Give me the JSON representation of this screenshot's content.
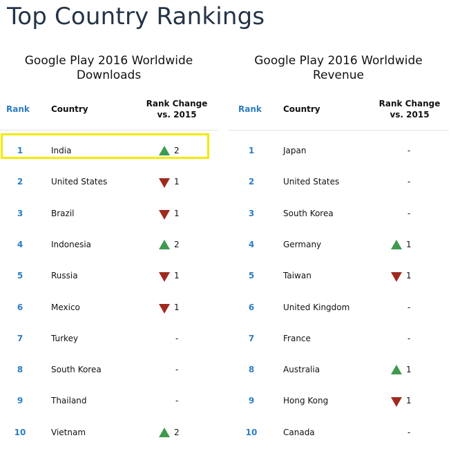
{
  "page_title": "Top Country Rankings",
  "chart_data": [
    {
      "type": "table",
      "title": "Google Play 2016 Worldwide Downloads",
      "columns": [
        "Rank",
        "Country",
        "Rank Change vs. 2015"
      ],
      "rows": [
        {
          "rank": "1",
          "country": "India",
          "change": "2",
          "direction": "up"
        },
        {
          "rank": "2",
          "country": "United States",
          "change": "1",
          "direction": "down"
        },
        {
          "rank": "3",
          "country": "Brazil",
          "change": "1",
          "direction": "down"
        },
        {
          "rank": "4",
          "country": "Indonesia",
          "change": "2",
          "direction": "up"
        },
        {
          "rank": "5",
          "country": "Russia",
          "change": "1",
          "direction": "down"
        },
        {
          "rank": "6",
          "country": "Mexico",
          "change": "1",
          "direction": "down"
        },
        {
          "rank": "7",
          "country": "Turkey",
          "change": "-",
          "direction": "none"
        },
        {
          "rank": "8",
          "country": "South Korea",
          "change": "-",
          "direction": "none"
        },
        {
          "rank": "9",
          "country": "Thailand",
          "change": "-",
          "direction": "none"
        },
        {
          "rank": "10",
          "country": "Vietnam",
          "change": "2",
          "direction": "up"
        }
      ],
      "highlighted_row": "1"
    },
    {
      "type": "table",
      "title": "Google Play 2016 Worldwide Revenue",
      "columns": [
        "Rank",
        "Country",
        "Rank Change vs. 2015"
      ],
      "rows": [
        {
          "rank": "1",
          "country": "Japan",
          "change": "-",
          "direction": "none"
        },
        {
          "rank": "2",
          "country": "United States",
          "change": "-",
          "direction": "none"
        },
        {
          "rank": "3",
          "country": "South Korea",
          "change": "-",
          "direction": "none"
        },
        {
          "rank": "4",
          "country": "Germany",
          "change": "1",
          "direction": "up"
        },
        {
          "rank": "5",
          "country": "Taiwan",
          "change": "1",
          "direction": "down"
        },
        {
          "rank": "6",
          "country": "United Kingdom",
          "change": "-",
          "direction": "none"
        },
        {
          "rank": "7",
          "country": "France",
          "change": "-",
          "direction": "none"
        },
        {
          "rank": "8",
          "country": "Australia",
          "change": "1",
          "direction": "up"
        },
        {
          "rank": "9",
          "country": "Hong Kong",
          "change": "1",
          "direction": "down"
        },
        {
          "rank": "10",
          "country": "Canada",
          "change": "-",
          "direction": "none"
        }
      ]
    }
  ],
  "header_labels": {
    "rank": "Rank",
    "country": "Country",
    "change_line1": "Rank Change",
    "change_line2": "vs. 2015"
  },
  "colors": {
    "title": "#243447",
    "rank": "#2d7ec2",
    "up": "#3f9a4f",
    "down": "#9e2a1d",
    "highlight": "#f2ea00"
  }
}
